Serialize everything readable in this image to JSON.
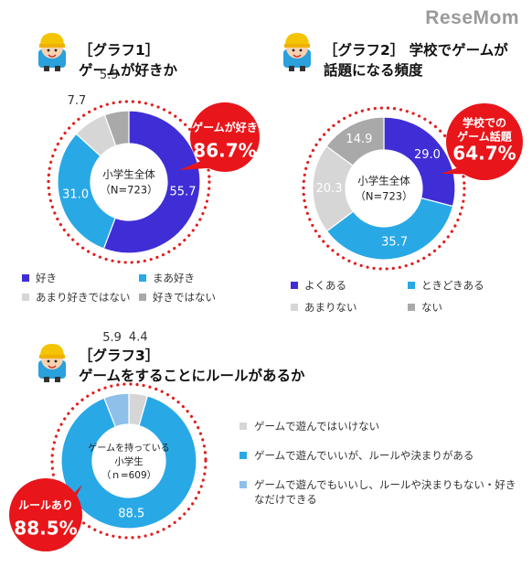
{
  "site_logo": "ReseMom",
  "charts": {
    "g1": {
      "title_line1": "［グラフ1］",
      "title_line2": "ゲームが好きか",
      "center_line1": "小学生全体",
      "center_line2": "（N=723）",
      "callout_line1": "ゲームが好き",
      "callout_line2": "86.7%"
    },
    "g2": {
      "title_line1": "［グラフ2］ 学校でゲームが",
      "title_line2": "話題になる頻度",
      "center_line1": "小学生全体",
      "center_line2": "（N=723）",
      "callout_line1": "学校での",
      "callout_line2": "ゲーム話題",
      "callout_line3": "64.7%"
    },
    "g3": {
      "title_line1": "［グラフ3］",
      "title_line2": "ゲームをすることにルールがあるか",
      "center_line1": "ゲームを持っている",
      "center_line2": "小学生",
      "center_line3": "（ｎ=609）",
      "callout_line1": "ルールあり",
      "callout_line2": "88.5%"
    }
  },
  "chart_data": [
    {
      "type": "pie",
      "title": "［グラフ1］ ゲームが好きか",
      "categories": [
        "好き",
        "まあ好き",
        "あまり好きではない",
        "好きではない"
      ],
      "values": [
        55.7,
        31.0,
        7.7,
        5.5
      ],
      "labels": [
        "55.7",
        "31.0",
        "7.7",
        "5.5"
      ],
      "colors": [
        "#3f2ed6",
        "#29a8e6",
        "#d6d6d6",
        "#a9a9a9"
      ],
      "legend": "bottom"
    },
    {
      "type": "pie",
      "title": "［グラフ2］ 学校でゲームが話題になる頻度",
      "categories": [
        "よくある",
        "ときどきある",
        "あまりない",
        "ない"
      ],
      "values": [
        29.0,
        35.7,
        20.3,
        14.9
      ],
      "labels": [
        "29.0",
        "35.7",
        "20.3",
        "14.9"
      ],
      "colors": [
        "#3f2ed6",
        "#29a8e6",
        "#d6d6d6",
        "#a9a9a9"
      ],
      "legend": "bottom"
    },
    {
      "type": "pie",
      "title": "［グラフ3］ ゲームをすることにルールがあるか",
      "categories": [
        "ゲームで遊んではいけない",
        "ゲームで遊んでいいが、ルールや決まりがある",
        "ゲームで遊んでもいいし、ルールや決まりもない・好きなだけできる"
      ],
      "values": [
        4.4,
        88.5,
        5.9
      ],
      "labels": [
        "4.4",
        "88.5",
        "5.9"
      ],
      "colors": [
        "#d6d6d6",
        "#29a8e6",
        "#8ec0ea"
      ],
      "legend": "right"
    }
  ]
}
